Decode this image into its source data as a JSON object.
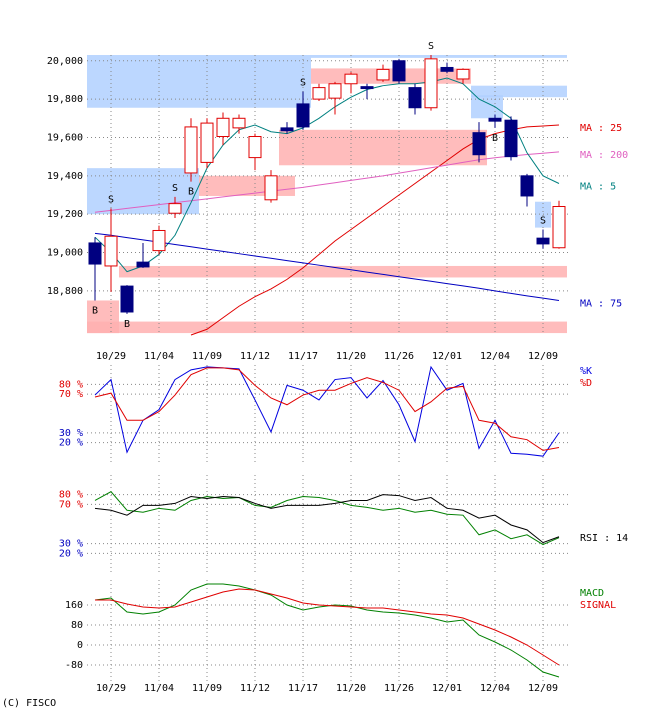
{
  "chart_data": [
    {
      "type": "candlestick",
      "categories": [
        null,
        "10/29",
        null,
        null,
        "11/04",
        null,
        null,
        "11/09",
        null,
        null,
        "11/12",
        null,
        null,
        "11/17",
        null,
        null,
        "11/20",
        null,
        null,
        "11/26",
        null,
        null,
        "12/01",
        null,
        null,
        "12/04",
        null,
        null,
        "12/09",
        null
      ],
      "open": [
        19050,
        18930,
        18825,
        18950,
        19010,
        19205,
        19415,
        19470,
        19605,
        19650,
        19495,
        19275,
        19650,
        19775,
        19800,
        19805,
        19880,
        19865,
        19900,
        20000,
        19860,
        19755,
        19965,
        19905,
        19625,
        19700,
        19690,
        19400,
        19075,
        19025
      ],
      "high": [
        19080,
        19230,
        18830,
        19050,
        19140,
        19290,
        19700,
        19700,
        19730,
        19720,
        19620,
        19430,
        19680,
        19840,
        19880,
        19890,
        19940,
        19880,
        19980,
        20010,
        19880,
        20030,
        19990,
        19960,
        19680,
        19720,
        19710,
        19410,
        19120,
        19270
      ],
      "low": [
        18750,
        18795,
        18680,
        18920,
        18990,
        19180,
        19370,
        19440,
        19560,
        19620,
        19430,
        19260,
        19620,
        19640,
        19790,
        19720,
        19830,
        19800,
        19890,
        19880,
        19720,
        19740,
        19935,
        19880,
        19470,
        19650,
        19480,
        19240,
        19020,
        19020
      ],
      "close": [
        18940,
        19085,
        18690,
        18925,
        19115,
        19255,
        19655,
        19675,
        19700,
        19700,
        19605,
        19400,
        19635,
        19655,
        19860,
        19880,
        19930,
        19855,
        19955,
        19895,
        19755,
        20010,
        19945,
        19955,
        19510,
        19685,
        19500,
        19295,
        19045,
        19240
      ],
      "up_color": "#e00000",
      "down_color": "#000080",
      "ylim": [
        18570,
        20030
      ],
      "yticks": [
        {
          "value": 18800,
          "label": "18,800"
        },
        {
          "value": 19000,
          "label": "19,000"
        },
        {
          "value": 19200,
          "label": "19,200"
        },
        {
          "value": 19400,
          "label": "19,400"
        },
        {
          "value": 19600,
          "label": "19,600"
        },
        {
          "value": 19800,
          "label": "19,800"
        },
        {
          "value": 20000,
          "label": "20,000"
        }
      ],
      "grid": true,
      "series": [
        {
          "name": "MA : 25",
          "color": "#e00000",
          "values": [
            null,
            null,
            null,
            null,
            null,
            null,
            18570,
            18600,
            18660,
            18720,
            18770,
            18810,
            18860,
            18920,
            18990,
            19060,
            19120,
            19180,
            19240,
            19300,
            19360,
            19420,
            19480,
            19540,
            19590,
            19620,
            19640,
            19655,
            19660,
            19665
          ]
        },
        {
          "name": "MA : 200",
          "color": "#e060c0",
          "values": [
            19210,
            19220,
            19230,
            19240,
            19250,
            19260,
            19270,
            19280,
            19290,
            19300,
            19310,
            19320,
            19330,
            19340,
            19352,
            19364,
            19376,
            19388,
            19400,
            19414,
            19428,
            19442,
            19456,
            19470,
            19484,
            19494,
            19503,
            19511,
            19518,
            19525
          ]
        },
        {
          "name": "MA : 5",
          "color": "#008080",
          "values": [
            19080,
            19000,
            18900,
            18930,
            18990,
            19090,
            19260,
            19440,
            19560,
            19640,
            19665,
            19630,
            19620,
            19650,
            19700,
            19760,
            19810,
            19850,
            19870,
            19880,
            19880,
            19890,
            19910,
            19880,
            19800,
            19760,
            19700,
            19520,
            19400,
            19360
          ]
        },
        {
          "name": "MA : 75",
          "color": "#0000c0",
          "values": [
            19100,
            19090,
            19078,
            19066,
            19054,
            19042,
            19030,
            19018,
            19006,
            18994,
            18982,
            18970,
            18958,
            18946,
            18934,
            18922,
            18910,
            18898,
            18886,
            18874,
            18862,
            18850,
            18838,
            18826,
            18814,
            18800,
            18787,
            18774,
            18762,
            18750
          ]
        }
      ],
      "zones": [
        {
          "color": "#b0d0ff",
          "low": 19755,
          "high": 20030,
          "start": 0,
          "end": 13
        },
        {
          "color": "#b0d0ff",
          "low": 20015,
          "high": 20030,
          "start": 14,
          "end": 29
        },
        {
          "color": "#b0d0ff",
          "low": 19200,
          "high": 19440,
          "start": 0,
          "end": 6
        },
        {
          "color": "#b0d0ff",
          "low": 19810,
          "high": 19870,
          "start": 24,
          "end": 29
        },
        {
          "color": "#b0d0ff",
          "low": 19700,
          "high": 19820,
          "start": 24,
          "end": 25
        },
        {
          "color": "#b0d0ff",
          "low": 19130,
          "high": 19265,
          "start": 28,
          "end": 28
        },
        {
          "color": "#ffb0b0",
          "low": 19295,
          "high": 19400,
          "start": 7,
          "end": 12
        },
        {
          "color": "#ffb0b0",
          "low": 19455,
          "high": 19640,
          "start": 12,
          "end": 24
        },
        {
          "color": "#ffb0b0",
          "low": 18580,
          "high": 18750,
          "start": 0,
          "end": 1
        },
        {
          "color": "#ffb0b0",
          "low": 18870,
          "high": 18930,
          "start": 2,
          "end": 29
        },
        {
          "color": "#ffb0b0",
          "low": 18580,
          "high": 18640,
          "start": 0,
          "end": 29
        },
        {
          "color": "#ffb0b0",
          "low": 19880,
          "high": 19960,
          "start": 14,
          "end": 23
        }
      ],
      "signals": [
        {
          "index": 0,
          "label": "B",
          "position": "below"
        },
        {
          "index": 1,
          "label": "S",
          "position": "above"
        },
        {
          "index": 2,
          "label": "B",
          "position": "below"
        },
        {
          "index": 5,
          "label": "S",
          "position": "above"
        },
        {
          "index": 6,
          "label": "B",
          "position": "below"
        },
        {
          "index": 13,
          "label": "S",
          "position": "above"
        },
        {
          "index": 21,
          "label": "S",
          "position": "above"
        },
        {
          "index": 25,
          "label": "B",
          "position": "below"
        },
        {
          "index": 28,
          "label": "S",
          "position": "above"
        }
      ]
    },
    {
      "type": "line",
      "ylim": [
        0,
        100
      ],
      "yticks": [
        {
          "value": 80,
          "label": "80 %",
          "color": "#e00000"
        },
        {
          "value": 70,
          "label": "70 %",
          "color": "#e00000"
        },
        {
          "value": 30,
          "label": "30 %",
          "color": "#0000c0"
        },
        {
          "value": 20,
          "label": "20 %",
          "color": "#0000c0"
        }
      ],
      "series": [
        {
          "name": "%K",
          "color": "#0000e0",
          "values": [
            69,
            85,
            10,
            43,
            54,
            85,
            95,
            98,
            97,
            96,
            64,
            31,
            79,
            74,
            64,
            85,
            87,
            66,
            84,
            59,
            21,
            98,
            74,
            81,
            14,
            43,
            9,
            8,
            6,
            30
          ]
        },
        {
          "name": "%D",
          "color": "#e00000",
          "values": [
            67,
            71,
            43,
            43,
            52,
            69,
            90,
            97,
            97,
            95,
            79,
            66,
            59,
            69,
            74,
            74,
            81,
            87,
            82,
            74,
            52,
            62,
            76,
            78,
            43,
            40,
            26,
            23,
            12,
            15
          ]
        }
      ]
    },
    {
      "type": "line",
      "ylim": [
        0,
        100
      ],
      "yticks": [
        {
          "value": 80,
          "label": "80 %",
          "color": "#e00000"
        },
        {
          "value": 70,
          "label": "70 %",
          "color": "#e00000"
        },
        {
          "value": 30,
          "label": "30 %",
          "color": "#0000c0"
        },
        {
          "value": 20,
          "label": "20 %",
          "color": "#0000c0"
        }
      ],
      "series": [
        {
          "color": "#008000",
          "values": [
            74,
            83,
            64,
            62,
            66,
            64,
            74,
            78,
            76,
            77,
            69,
            67,
            74,
            78,
            77,
            74,
            69,
            67,
            64,
            66,
            62,
            64,
            60,
            59,
            39,
            44,
            35,
            39,
            29,
            36
          ]
        },
        {
          "name": "RSI : 14",
          "color": "#000000",
          "values": [
            66,
            64,
            59,
            69,
            69,
            71,
            78,
            76,
            78,
            77,
            71,
            66,
            69,
            69,
            69,
            71,
            74,
            74,
            80,
            79,
            74,
            77,
            66,
            64,
            56,
            59,
            49,
            44,
            31,
            37
          ]
        }
      ]
    },
    {
      "type": "line",
      "ylim": [
        -160,
        260
      ],
      "yticks": [
        160,
        80,
        0,
        -80
      ],
      "series": [
        {
          "name": "MACD",
          "color": "#008000",
          "values": [
            180,
            188,
            132,
            124,
            132,
            160,
            220,
            244,
            244,
            236,
            220,
            200,
            160,
            140,
            152,
            160,
            156,
            140,
            132,
            128,
            120,
            108,
            92,
            100,
            40,
            12,
            -20,
            -60,
            -108,
            -128
          ]
        },
        {
          "name": "SIGNAL",
          "color": "#e00000",
          "values": [
            180,
            180,
            164,
            152,
            148,
            152,
            172,
            192,
            212,
            224,
            220,
            204,
            188,
            168,
            160,
            156,
            152,
            148,
            148,
            140,
            132,
            124,
            120,
            108,
            84,
            60,
            32,
            0,
            -40,
            -80
          ]
        }
      ]
    }
  ],
  "copyright": "(C) FISCO"
}
